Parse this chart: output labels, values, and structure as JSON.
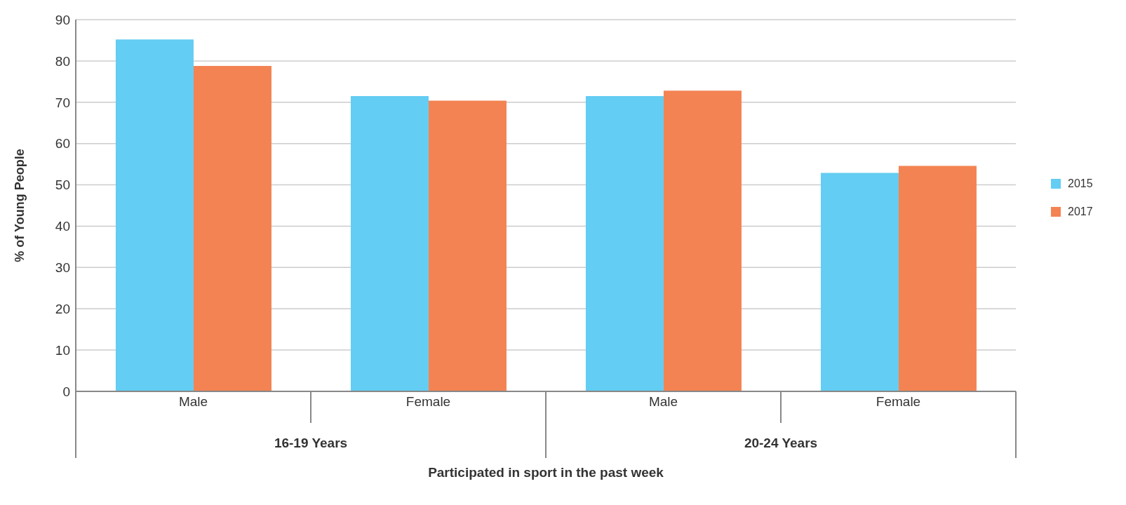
{
  "chart_data": {
    "type": "bar",
    "xlabel": "Participated in sport in the past week",
    "ylabel": "% of Young People",
    "categories": [
      "Male",
      "Female",
      "Male",
      "Female"
    ],
    "annotations": [
      "16-19 Years",
      "20-24 Years"
    ],
    "series": [
      {
        "name": "2015",
        "color": "#63cdf3",
        "values": [
          85.2,
          71.5,
          71.5,
          52.9
        ]
      },
      {
        "name": "2017",
        "color": "#f48353",
        "values": [
          78.8,
          70.4,
          72.8,
          54.6
        ]
      }
    ],
    "ylim": [
      0,
      90
    ],
    "yticks": [
      0,
      10,
      20,
      30,
      40,
      50,
      60,
      70,
      80,
      90
    ],
    "grid": "y",
    "legend": "right"
  }
}
